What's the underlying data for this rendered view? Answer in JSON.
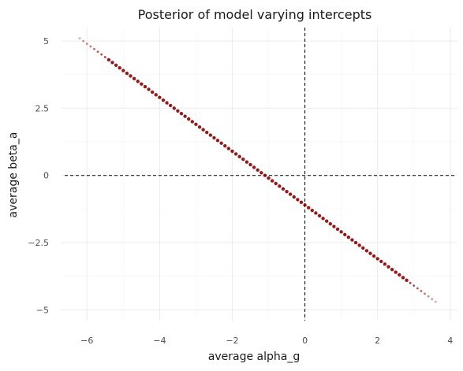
{
  "chart_data": {
    "type": "scatter",
    "title": "Posterior of model varying intercepts",
    "xlabel": "average alpha_g",
    "ylabel": "average beta_a",
    "xlim": [
      -6.7,
      4.2
    ],
    "ylim": [
      -5.4,
      5.5
    ],
    "x_ticks": [
      -6,
      -4,
      -2,
      0,
      2,
      4
    ],
    "x_tick_labels": [
      "−6",
      "−4",
      "−2",
      "0",
      "2",
      "4"
    ],
    "y_ticks": [
      -5,
      -2.5,
      0,
      2.5,
      5
    ],
    "y_tick_labels": [
      "−5",
      "−2.5",
      "0",
      "2.5",
      "5"
    ],
    "grid": true,
    "reference_lines": {
      "x": 0,
      "y": 0,
      "style": "dashed",
      "color": "#000000"
    },
    "point_color": "#8b0000",
    "series": [
      {
        "relationship": "y = -1.0 * x - 1.1",
        "x": [
          -6.2,
          -6.1,
          -6.0,
          -5.9,
          -5.8,
          -5.7,
          -5.6,
          -5.5,
          -5.4,
          -5.3,
          -5.2,
          -5.1,
          -5.0,
          -4.9,
          -4.8,
          -4.7,
          -4.6,
          -4.5,
          -4.4,
          -4.3,
          -4.2,
          -4.1,
          -4.0,
          -3.9,
          -3.8,
          -3.7,
          -3.6,
          -3.5,
          -3.4,
          -3.3,
          -3.2,
          -3.1,
          -3.0,
          -2.9,
          -2.8,
          -2.7,
          -2.6,
          -2.5,
          -2.4,
          -2.3,
          -2.2,
          -2.1,
          -2.0,
          -1.9,
          -1.8,
          -1.7,
          -1.6,
          -1.5,
          -1.4,
          -1.3,
          -1.2,
          -1.1,
          -1.0,
          -0.9,
          -0.8,
          -0.7,
          -0.6,
          -0.5,
          -0.4,
          -0.3,
          -0.2,
          -0.1,
          0.0,
          0.1,
          0.2,
          0.3,
          0.4,
          0.5,
          0.6,
          0.7,
          0.8,
          0.9,
          1.0,
          1.1,
          1.2,
          1.3,
          1.4,
          1.5,
          1.6,
          1.7,
          1.8,
          1.9,
          2.0,
          2.1,
          2.2,
          2.3,
          2.4,
          2.5,
          2.6,
          2.7,
          2.8,
          2.9,
          3.0,
          3.1,
          3.2,
          3.3,
          3.4,
          3.5,
          3.6
        ],
        "y": [
          5.1,
          5.0,
          4.9,
          4.8,
          4.7,
          4.6,
          4.5,
          4.4,
          4.3,
          4.2,
          4.1,
          4.0,
          3.9,
          3.8,
          3.7,
          3.6,
          3.5,
          3.4,
          3.3,
          3.2,
          3.1,
          3.0,
          2.9,
          2.8,
          2.7,
          2.6,
          2.5,
          2.4,
          2.3,
          2.2,
          2.1,
          2.0,
          1.9,
          1.8,
          1.7,
          1.6,
          1.5,
          1.4,
          1.3,
          1.2,
          1.1,
          1.0,
          0.9,
          0.8,
          0.7,
          0.6,
          0.5,
          0.4,
          0.3,
          0.2,
          0.1,
          0.0,
          -0.1,
          -0.2,
          -0.3,
          -0.4,
          -0.5,
          -0.6,
          -0.7,
          -0.8,
          -0.9,
          -1.0,
          -1.1,
          -1.2,
          -1.3,
          -1.4,
          -1.5,
          -1.6,
          -1.7,
          -1.8,
          -1.9,
          -2.0,
          -2.1,
          -2.2,
          -2.3,
          -2.4,
          -2.5,
          -2.6,
          -2.7,
          -2.8,
          -2.9,
          -3.0,
          -3.1,
          -3.2,
          -3.3,
          -3.4,
          -3.5,
          -3.6,
          -3.7,
          -3.8,
          -3.9,
          -4.0,
          -4.1,
          -4.2,
          -4.3,
          -4.4,
          -4.5,
          -4.6,
          -4.7
        ]
      }
    ]
  }
}
